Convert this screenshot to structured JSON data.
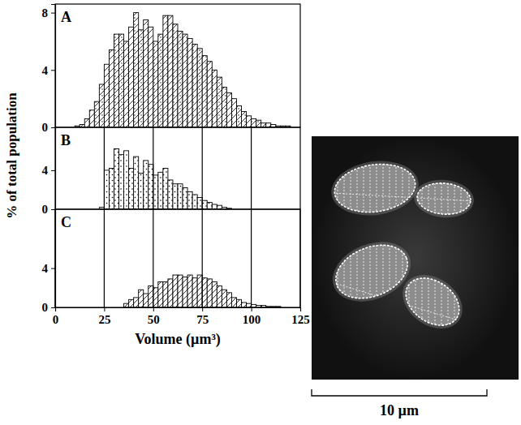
{
  "chart_data": [
    {
      "type": "histogram",
      "label": "A",
      "color": "#000000",
      "bins": [
        10,
        12.5,
        15,
        17.5,
        20,
        22.5,
        25,
        27.5,
        30,
        32.5,
        35,
        37.5,
        40,
        42.5,
        45,
        47.5,
        50,
        52.5,
        55,
        57.5,
        60,
        62.5,
        65,
        67.5,
        70,
        72.5,
        75,
        77.5,
        80,
        82.5,
        85,
        87.5,
        90,
        92.5,
        95,
        97.5,
        100,
        102.5,
        105,
        107.5,
        110,
        112.5,
        115,
        117.5,
        120
      ],
      "values": [
        0.1,
        0.2,
        0.6,
        1.2,
        1.8,
        3.0,
        4.4,
        5.4,
        6.5,
        6.5,
        6.0,
        7.0,
        8.0,
        6.8,
        7.5,
        7.0,
        6.0,
        6.5,
        7.8,
        7.8,
        7.2,
        6.7,
        6.5,
        6.2,
        5.8,
        5.5,
        5.0,
        4.6,
        4.0,
        3.5,
        2.8,
        2.4,
        2.0,
        1.5,
        1.1,
        0.8,
        0.6,
        0.5,
        0.3,
        0.3,
        0.2,
        0.1,
        0.1,
        0.1
      ],
      "xlim": [
        0,
        125
      ],
      "ylim": [
        0,
        8.6
      ],
      "yticks": [
        0,
        4,
        8
      ],
      "grid": false,
      "tick_labels": "y"
    },
    {
      "type": "histogram",
      "label": "B",
      "color": "#000000",
      "y_label": "% of total population",
      "bins": [
        22.5,
        25,
        27.5,
        30,
        32.5,
        35,
        37.5,
        40,
        42.5,
        45,
        47.5,
        50,
        52.5,
        55,
        57.5,
        60,
        62.5,
        65,
        67.5,
        70,
        72.5,
        75,
        77.5,
        80,
        82.5,
        85,
        87.5,
        90
      ],
      "values": [
        0.2,
        4.0,
        4.2,
        6.2,
        5.6,
        6.0,
        4.2,
        5.4,
        3.7,
        5.0,
        4.6,
        3.5,
        3.8,
        4.2,
        3.0,
        2.6,
        2.6,
        2.2,
        1.8,
        1.5,
        1.2,
        0.9,
        0.7,
        0.5,
        0.4,
        0.2,
        0.1
      ],
      "xlim": [
        0,
        125
      ],
      "xticks": [
        25,
        50,
        75,
        100
      ],
      "ylim": [
        0,
        8.4
      ],
      "yticks": [
        0,
        4
      ],
      "grid": true,
      "tick_labels": "y"
    },
    {
      "type": "histogram",
      "label": "C",
      "color": "#000000",
      "x_label": "Volume (µm³)",
      "bins": [
        35,
        37.5,
        40,
        42.5,
        45,
        47.5,
        50,
        52.5,
        55,
        57.5,
        60,
        62.5,
        65,
        67.5,
        70,
        72.5,
        75,
        77.5,
        80,
        82.5,
        85,
        87.5,
        90,
        92.5,
        95,
        97.5,
        100,
        102.5,
        105,
        107.5,
        110,
        112.5,
        115
      ],
      "values": [
        0.4,
        0.8,
        1.0,
        1.8,
        1.4,
        2.2,
        2.0,
        2.6,
        2.6,
        2.9,
        3.3,
        3.3,
        3.1,
        3.3,
        3.0,
        3.3,
        3.0,
        2.9,
        2.6,
        2.2,
        1.8,
        1.5,
        1.0,
        0.8,
        0.5,
        0.4,
        0.3,
        0.2,
        0.2,
        0.1,
        0.1,
        0.1
      ],
      "xlim": [
        0,
        125
      ],
      "xticks": [
        0,
        25,
        50,
        75,
        100,
        125
      ],
      "ylim": [
        0,
        10
      ],
      "yticks": [
        0,
        4
      ],
      "grid": true,
      "tick_labels": true
    }
  ],
  "image": {
    "scale_bar_label": "10 µm"
  }
}
